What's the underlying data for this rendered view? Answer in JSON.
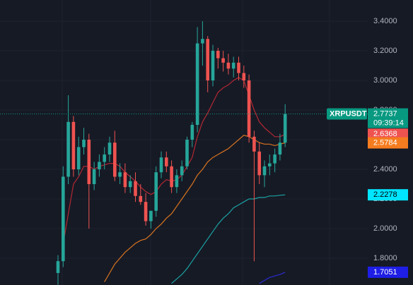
{
  "chart_data": {
    "type": "candlestick",
    "ylim": [
      1.619,
      3.543
    ],
    "yticks": [
      {
        "value": 1.8,
        "label": "1.8000"
      },
      {
        "value": 2.0,
        "label": "2.0000"
      },
      {
        "value": 2.2,
        "label": "2.2000"
      },
      {
        "value": 2.4,
        "label": "2.4000"
      },
      {
        "value": 2.6,
        "label": "2.6000"
      },
      {
        "value": 2.8,
        "label": "2.8000"
      },
      {
        "value": 3.0,
        "label": "3.0000"
      },
      {
        "value": 3.2,
        "label": "3.2000"
      },
      {
        "value": 3.4,
        "label": "3.4000"
      }
    ],
    "grid": true,
    "up_color": "#26a69a",
    "down_color": "#ef5350",
    "candles": {
      "name": "XRPUSDT",
      "last_label": "2.7737",
      "countdown": "09:39:14",
      "color": "#089981",
      "open": [
        1.7,
        1.78,
        2.35,
        2.72,
        2.4,
        2.55,
        2.6,
        2.3,
        2.4,
        2.45,
        2.5,
        2.58,
        2.35,
        2.38,
        2.28,
        2.32,
        2.22,
        2.18,
        2.05,
        2.12,
        2.38,
        2.48,
        2.42,
        2.28,
        2.36,
        2.42,
        2.6,
        2.7,
        3.25,
        3.28,
        3.0,
        3.2,
        3.15,
        3.12,
        3.08,
        3.12,
        3.05,
        3.0,
        2.62,
        2.52,
        2.36,
        2.42,
        2.44,
        2.5,
        2.58
      ],
      "high": [
        1.82,
        2.42,
        2.9,
        2.76,
        2.62,
        2.68,
        2.64,
        2.45,
        2.5,
        2.55,
        2.62,
        2.66,
        2.44,
        2.44,
        2.36,
        2.38,
        2.3,
        2.24,
        2.12,
        2.42,
        2.52,
        2.52,
        2.46,
        2.4,
        2.46,
        2.62,
        2.72,
        3.36,
        3.4,
        3.3,
        3.24,
        3.22,
        3.2,
        3.18,
        3.16,
        3.16,
        3.1,
        3.04,
        2.66,
        2.58,
        2.46,
        2.5,
        2.54,
        2.64,
        2.84
      ],
      "low": [
        1.62,
        1.74,
        2.3,
        2.35,
        2.36,
        2.5,
        2.0,
        2.26,
        2.35,
        2.4,
        2.45,
        2.32,
        2.3,
        2.24,
        2.24,
        2.18,
        2.16,
        2.02,
        2.0,
        2.08,
        2.34,
        2.38,
        2.24,
        2.24,
        2.32,
        2.4,
        2.55,
        2.65,
        3.1,
        2.92,
        2.96,
        3.08,
        3.06,
        3.04,
        3.02,
        3.0,
        2.95,
        2.58,
        1.78,
        2.3,
        2.28,
        2.36,
        2.38,
        2.46,
        2.55
      ],
      "close": [
        1.78,
        2.35,
        2.72,
        2.4,
        2.55,
        2.6,
        2.3,
        2.4,
        2.45,
        2.5,
        2.58,
        2.35,
        2.38,
        2.28,
        2.32,
        2.22,
        2.18,
        2.05,
        2.12,
        2.38,
        2.48,
        2.42,
        2.28,
        2.36,
        2.42,
        2.6,
        2.7,
        3.25,
        3.28,
        3.0,
        3.2,
        3.15,
        3.12,
        3.08,
        3.12,
        3.05,
        3.0,
        2.62,
        2.52,
        2.36,
        2.42,
        2.44,
        2.5,
        2.58,
        2.7737
      ]
    },
    "series": [
      {
        "color": "#ef5350",
        "line_color": "#b22833",
        "last_label": "2.6368",
        "values": [
          null,
          1.9,
          2.1,
          2.3,
          2.35,
          2.42,
          2.42,
          2.4,
          2.42,
          2.43,
          2.44,
          2.44,
          2.42,
          2.38,
          2.35,
          2.32,
          2.28,
          2.25,
          2.23,
          2.25,
          2.3,
          2.33,
          2.32,
          2.33,
          2.36,
          2.42,
          2.48,
          2.62,
          2.72,
          2.78,
          2.85,
          2.92,
          2.95,
          2.97,
          3.0,
          3.02,
          3.0,
          2.9,
          2.8,
          2.72,
          2.68,
          2.65,
          2.62,
          2.62,
          2.6368
        ]
      },
      {
        "color": "#f57c1f",
        "line_color": "#d8731f",
        "last_label": "2.5784",
        "values": [
          null,
          null,
          null,
          null,
          null,
          null,
          null,
          null,
          null,
          1.64,
          1.7,
          1.76,
          1.8,
          1.84,
          1.87,
          1.9,
          1.92,
          1.93,
          1.96,
          2.0,
          2.03,
          2.07,
          2.1,
          2.15,
          2.2,
          2.25,
          2.3,
          2.36,
          2.4,
          2.45,
          2.48,
          2.5,
          2.52,
          2.54,
          2.57,
          2.6,
          2.63,
          2.62,
          2.6,
          2.58,
          2.57,
          2.57,
          2.56,
          2.57,
          2.5784
        ]
      },
      {
        "color": "#00e5ff",
        "line_color": "#1aa3a3",
        "last_label": "2.2278",
        "values": [
          null,
          null,
          null,
          null,
          null,
          null,
          null,
          null,
          null,
          null,
          null,
          null,
          null,
          null,
          null,
          null,
          null,
          null,
          null,
          null,
          null,
          null,
          1.63,
          1.66,
          1.69,
          1.73,
          1.78,
          1.83,
          1.88,
          1.93,
          1.98,
          2.03,
          2.07,
          2.1,
          2.14,
          2.16,
          2.18,
          2.2,
          2.2,
          2.21,
          2.21,
          2.22,
          2.22,
          2.225,
          2.2278
        ]
      },
      {
        "color": "#1e1ee6",
        "line_color": "#2a2ad0",
        "last_label": "1.7051",
        "values": [
          null,
          null,
          null,
          null,
          null,
          null,
          null,
          null,
          null,
          null,
          null,
          null,
          null,
          null,
          null,
          null,
          null,
          null,
          null,
          null,
          null,
          null,
          null,
          null,
          null,
          null,
          null,
          null,
          null,
          null,
          null,
          null,
          null,
          null,
          null,
          null,
          null,
          null,
          null,
          1.63,
          1.65,
          1.67,
          1.68,
          1.69,
          1.7051
        ]
      }
    ]
  }
}
